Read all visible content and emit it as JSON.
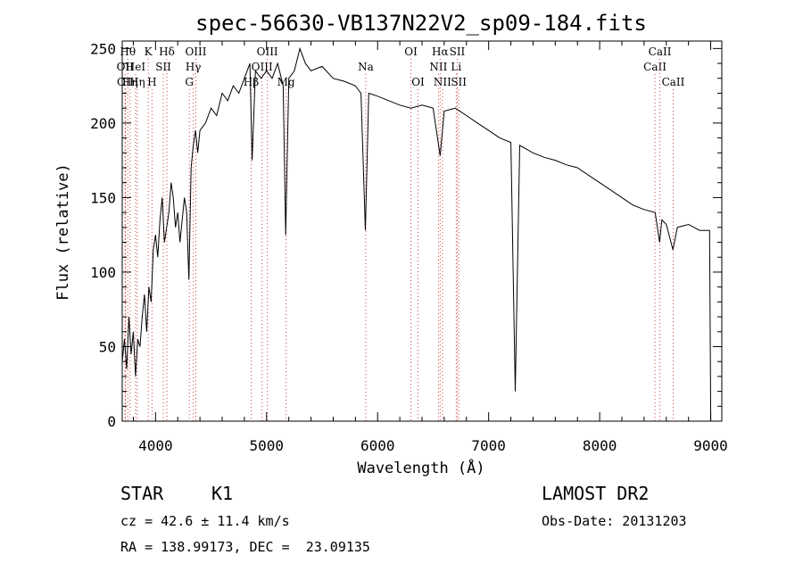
{
  "chart_data": {
    "type": "line",
    "title": "spec-56630-VB137N22V2_sp09-184.fits",
    "xlabel": "Wavelength (Å)",
    "ylabel": "Flux (relative)",
    "xlim": [
      3700,
      9100
    ],
    "ylim": [
      0,
      255
    ],
    "xticks": [
      4000,
      5000,
      6000,
      7000,
      8000,
      9000
    ],
    "yticks": [
      0,
      50,
      100,
      150,
      200,
      250
    ],
    "grid": false,
    "series": [
      {
        "values": [
          [
            3700,
            40
          ],
          [
            3720,
            55
          ],
          [
            3740,
            35
          ],
          [
            3760,
            70
          ],
          [
            3780,
            45
          ],
          [
            3800,
            60
          ],
          [
            3820,
            30
          ],
          [
            3840,
            55
          ],
          [
            3860,
            50
          ],
          [
            3880,
            70
          ],
          [
            3900,
            85
          ],
          [
            3920,
            60
          ],
          [
            3940,
            90
          ],
          [
            3960,
            80
          ],
          [
            3980,
            115
          ],
          [
            4000,
            125
          ],
          [
            4020,
            110
          ],
          [
            4040,
            135
          ],
          [
            4060,
            150
          ],
          [
            4080,
            120
          ],
          [
            4100,
            130
          ],
          [
            4120,
            140
          ],
          [
            4140,
            160
          ],
          [
            4160,
            150
          ],
          [
            4180,
            130
          ],
          [
            4200,
            140
          ],
          [
            4220,
            120
          ],
          [
            4240,
            135
          ],
          [
            4260,
            150
          ],
          [
            4280,
            140
          ],
          [
            4300,
            95
          ],
          [
            4320,
            170
          ],
          [
            4340,
            185
          ],
          [
            4360,
            195
          ],
          [
            4380,
            180
          ],
          [
            4400,
            195
          ],
          [
            4450,
            200
          ],
          [
            4500,
            210
          ],
          [
            4550,
            205
          ],
          [
            4600,
            220
          ],
          [
            4650,
            215
          ],
          [
            4700,
            225
          ],
          [
            4750,
            220
          ],
          [
            4800,
            230
          ],
          [
            4850,
            240
          ],
          [
            4870,
            175
          ],
          [
            4900,
            235
          ],
          [
            4950,
            230
          ],
          [
            5000,
            235
          ],
          [
            5050,
            230
          ],
          [
            5100,
            240
          ],
          [
            5150,
            225
          ],
          [
            5172,
            125
          ],
          [
            5200,
            230
          ],
          [
            5250,
            235
          ],
          [
            5300,
            250
          ],
          [
            5350,
            240
          ],
          [
            5400,
            235
          ],
          [
            5500,
            238
          ],
          [
            5600,
            230
          ],
          [
            5700,
            228
          ],
          [
            5800,
            225
          ],
          [
            5850,
            220
          ],
          [
            5890,
            128
          ],
          [
            5920,
            220
          ],
          [
            6000,
            218
          ],
          [
            6100,
            215
          ],
          [
            6200,
            212
          ],
          [
            6300,
            210
          ],
          [
            6400,
            212
          ],
          [
            6500,
            210
          ],
          [
            6563,
            178
          ],
          [
            6600,
            208
          ],
          [
            6700,
            210
          ],
          [
            6800,
            205
          ],
          [
            6900,
            200
          ],
          [
            7000,
            195
          ],
          [
            7100,
            190
          ],
          [
            7200,
            187
          ],
          [
            7240,
            20
          ],
          [
            7280,
            185
          ],
          [
            7400,
            180
          ],
          [
            7500,
            177
          ],
          [
            7600,
            175
          ],
          [
            7700,
            172
          ],
          [
            7800,
            170
          ],
          [
            7900,
            165
          ],
          [
            8000,
            160
          ],
          [
            8100,
            155
          ],
          [
            8200,
            150
          ],
          [
            8300,
            145
          ],
          [
            8400,
            142
          ],
          [
            8500,
            140
          ],
          [
            8540,
            120
          ],
          [
            8560,
            135
          ],
          [
            8600,
            132
          ],
          [
            8660,
            115
          ],
          [
            8700,
            130
          ],
          [
            8800,
            132
          ],
          [
            8900,
            128
          ],
          [
            8990,
            128
          ],
          [
            9000,
            0
          ]
        ]
      }
    ],
    "lines": [
      {
        "w": 3726,
        "label": "OII",
        "row": 2
      },
      {
        "w": 3729,
        "label": "OII",
        "row": 3
      },
      {
        "w": 3750,
        "label": "Hθ",
        "row": 1
      },
      {
        "w": 3771,
        "label": "Hη",
        "row": 3
      },
      {
        "w": 3820,
        "label": "HeI",
        "row": 2
      },
      {
        "w": 3835,
        "label": "Hη",
        "row": 3
      },
      {
        "w": 3934,
        "label": "K",
        "row": 1
      },
      {
        "w": 3968,
        "label": "H",
        "row": 3
      },
      {
        "w": 4070,
        "label": "SII",
        "row": 2
      },
      {
        "w": 4102,
        "label": "Hδ",
        "row": 1
      },
      {
        "w": 4304,
        "label": "G",
        "row": 3
      },
      {
        "w": 4340,
        "label": "Hγ",
        "row": 2
      },
      {
        "w": 4363,
        "label": "OIII",
        "row": 1
      },
      {
        "w": 4861,
        "label": "Hβ",
        "row": 3
      },
      {
        "w": 4959,
        "label": "OIII",
        "row": 2
      },
      {
        "w": 5007,
        "label": "OIII",
        "row": 1
      },
      {
        "w": 5175,
        "label": "Mg",
        "row": 3
      },
      {
        "w": 5893,
        "label": "Na",
        "row": 2
      },
      {
        "w": 6300,
        "label": "OI",
        "row": 1
      },
      {
        "w": 6364,
        "label": "OI",
        "row": 3
      },
      {
        "w": 6548,
        "label": "NII",
        "row": 2
      },
      {
        "w": 6563,
        "label": "Hα",
        "row": 1
      },
      {
        "w": 6584,
        "label": "NII",
        "row": 3
      },
      {
        "w": 6708,
        "label": "Li",
        "row": 2
      },
      {
        "w": 6717,
        "label": "SII",
        "row": 1
      },
      {
        "w": 6731,
        "label": "SII",
        "row": 3
      },
      {
        "w": 8498,
        "label": "CaII",
        "row": 2
      },
      {
        "w": 8542,
        "label": "CaII",
        "row": 1
      },
      {
        "w": 8662,
        "label": "CaII",
        "row": 3
      }
    ]
  },
  "info": {
    "class": "STAR",
    "subclass": "K1",
    "survey": "LAMOST DR2",
    "cz": "cz = 42.6 ± 11.4 km/s",
    "obs_date": "Obs-Date: 20131203",
    "coords": "RA = 138.99173, DEC =  23.09135"
  }
}
